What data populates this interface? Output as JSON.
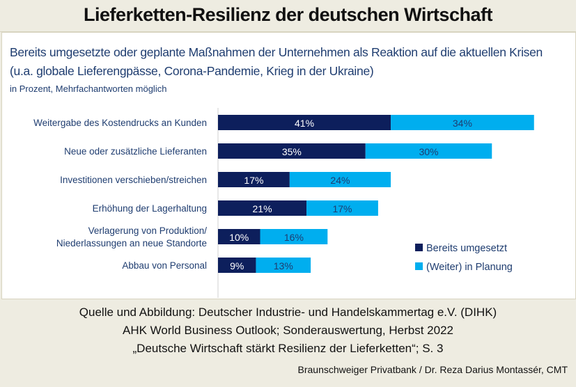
{
  "header": {
    "title": "Lieferketten-Resilienz der deutschen Wirtschaft"
  },
  "chart_data": {
    "type": "bar",
    "orientation": "horizontal",
    "stacked": true,
    "title": "Bereits umgesetzte oder geplante Maßnahmen der Unternehmen als Reaktion auf die aktuellen Krisen (u.a. globale Lieferengpässe, Corona-Pandemie, Krieg in der Ukraine)",
    "subtitle": "in Prozent, Mehrfachantworten möglich",
    "categories": [
      [
        "Weitergabe des Kostendrucks an Kunden"
      ],
      [
        "Neue oder zusätzliche Lieferanten"
      ],
      [
        "Investitionen verschieben/streichen"
      ],
      [
        "Erhöhung der Lagerhaltung"
      ],
      [
        "Verlagerung von Produktion/",
        "Niederlassungen an neue Standorte"
      ],
      [
        "Abbau von Personal"
      ]
    ],
    "series": [
      {
        "name": "Bereits umgesetzt",
        "color": "#0d1f5c",
        "label_color": "#ffffff",
        "values": [
          41,
          35,
          17,
          21,
          10,
          9
        ]
      },
      {
        "name": "(Weiter) in Planung",
        "color": "#00aeef",
        "label_color": "#1f3d70",
        "values": [
          34,
          30,
          24,
          17,
          16,
          13
        ]
      }
    ],
    "value_suffix": "%",
    "grid": false,
    "legend_placement": "bottom-right"
  },
  "footer": {
    "source_lines": [
      "Quelle und Abbildung: Deutscher Industrie- und Handelskammertag e.V. (DIHK)",
      "AHK World Business Outlook; Sonderauswertung,  Herbst 2022",
      "„Deutsche Wirtschaft stärkt Resilienz der Lieferketten“; S. 3"
    ],
    "credit": "Braunschweiger Privatbank / Dr. Reza Darius Montassér, CMT"
  }
}
